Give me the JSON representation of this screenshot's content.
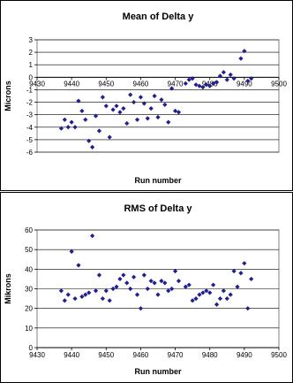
{
  "chart_data": [
    {
      "type": "scatter",
      "title": "Mean of Delta y",
      "xlabel": "Run number",
      "ylabel": "Microns",
      "xlim": [
        9430,
        9500
      ],
      "ylim": [
        -6,
        3
      ],
      "x_ticks": [
        "9430",
        "9440",
        "9450",
        "9460",
        "9470",
        "9480",
        "9490",
        "9500"
      ],
      "y_ticks": [
        "-6",
        "-5",
        "-4",
        "-3",
        "-2",
        "-1",
        "0",
        "1",
        "2",
        "3"
      ],
      "grid": "horizontal",
      "marker_color": "#1f1f8f",
      "x_axis_at": 0,
      "x": [
        9437,
        9438,
        9439,
        9440,
        9441,
        9442,
        9443,
        9444,
        9445,
        9446,
        9447,
        9448,
        9449,
        9450,
        9451,
        9452,
        9453,
        9454,
        9455,
        9456,
        9457,
        9458,
        9459,
        9460,
        9461,
        9462,
        9463,
        9464,
        9465,
        9466,
        9467,
        9468,
        9469,
        9470,
        9471,
        9473,
        9474,
        9475,
        9476,
        9477,
        9478,
        9479,
        9480,
        9481,
        9482,
        9483,
        9484,
        9485,
        9486,
        9487,
        9489,
        9490,
        9491,
        9492
      ],
      "y": [
        -4.1,
        -3.4,
        -4.0,
        -3.6,
        -4.0,
        -1.9,
        -2.7,
        -3.4,
        -5.1,
        -5.6,
        -3.1,
        -4.3,
        -1.6,
        -2.3,
        -4.8,
        -2.6,
        -2.3,
        -2.8,
        -2.5,
        -3.7,
        -1.4,
        -2.0,
        -3.4,
        -1.6,
        -2.1,
        -3.3,
        -2.5,
        -1.5,
        -3.2,
        -1.8,
        -2.2,
        -3.6,
        -0.9,
        -2.7,
        -2.8,
        -0.5,
        -0.2,
        -0.1,
        -0.6,
        -0.7,
        -0.8,
        -0.6,
        -0.7,
        -0.5,
        -0.4,
        0.1,
        0.4,
        -0.2,
        0.2,
        -0.1,
        1.5,
        2.1,
        -0.3,
        -0.1
      ]
    },
    {
      "type": "scatter",
      "title": "RMS of Delta y",
      "xlabel": "Run number",
      "ylabel": "Mikrons",
      "xlim": [
        9430,
        9500
      ],
      "ylim": [
        0,
        60
      ],
      "x_ticks": [
        "9430",
        "9440",
        "9450",
        "9460",
        "9470",
        "9480",
        "9490",
        "9500"
      ],
      "y_ticks": [
        "0",
        "10",
        "20",
        "30",
        "40",
        "50",
        "60"
      ],
      "grid": "horizontal",
      "marker_color": "#1f1f8f",
      "x_axis_at": 0,
      "x": [
        9437,
        9438,
        9439,
        9440,
        9441,
        9442,
        9443,
        9444,
        9445,
        9446,
        9447,
        9448,
        9449,
        9450,
        9451,
        9452,
        9453,
        9454,
        9455,
        9456,
        9457,
        9458,
        9459,
        9460,
        9461,
        9462,
        9463,
        9464,
        9465,
        9466,
        9467,
        9468,
        9469,
        9470,
        9471,
        9473,
        9474,
        9475,
        9476,
        9477,
        9478,
        9479,
        9480,
        9481,
        9482,
        9483,
        9484,
        9485,
        9486,
        9487,
        9488,
        9489,
        9490,
        9491,
        9492
      ],
      "y": [
        29,
        24,
        27,
        49,
        25,
        42,
        26,
        27,
        28,
        57,
        29,
        37,
        25,
        29,
        24,
        30,
        31,
        35,
        37,
        33,
        30,
        36,
        27,
        20,
        37,
        30,
        34,
        33,
        27,
        34,
        33,
        29,
        30,
        39,
        34,
        31,
        32,
        24,
        25,
        27,
        28,
        29,
        28,
        32,
        22,
        25,
        29,
        25,
        27,
        39,
        31,
        38,
        43,
        20,
        35
      ]
    }
  ]
}
